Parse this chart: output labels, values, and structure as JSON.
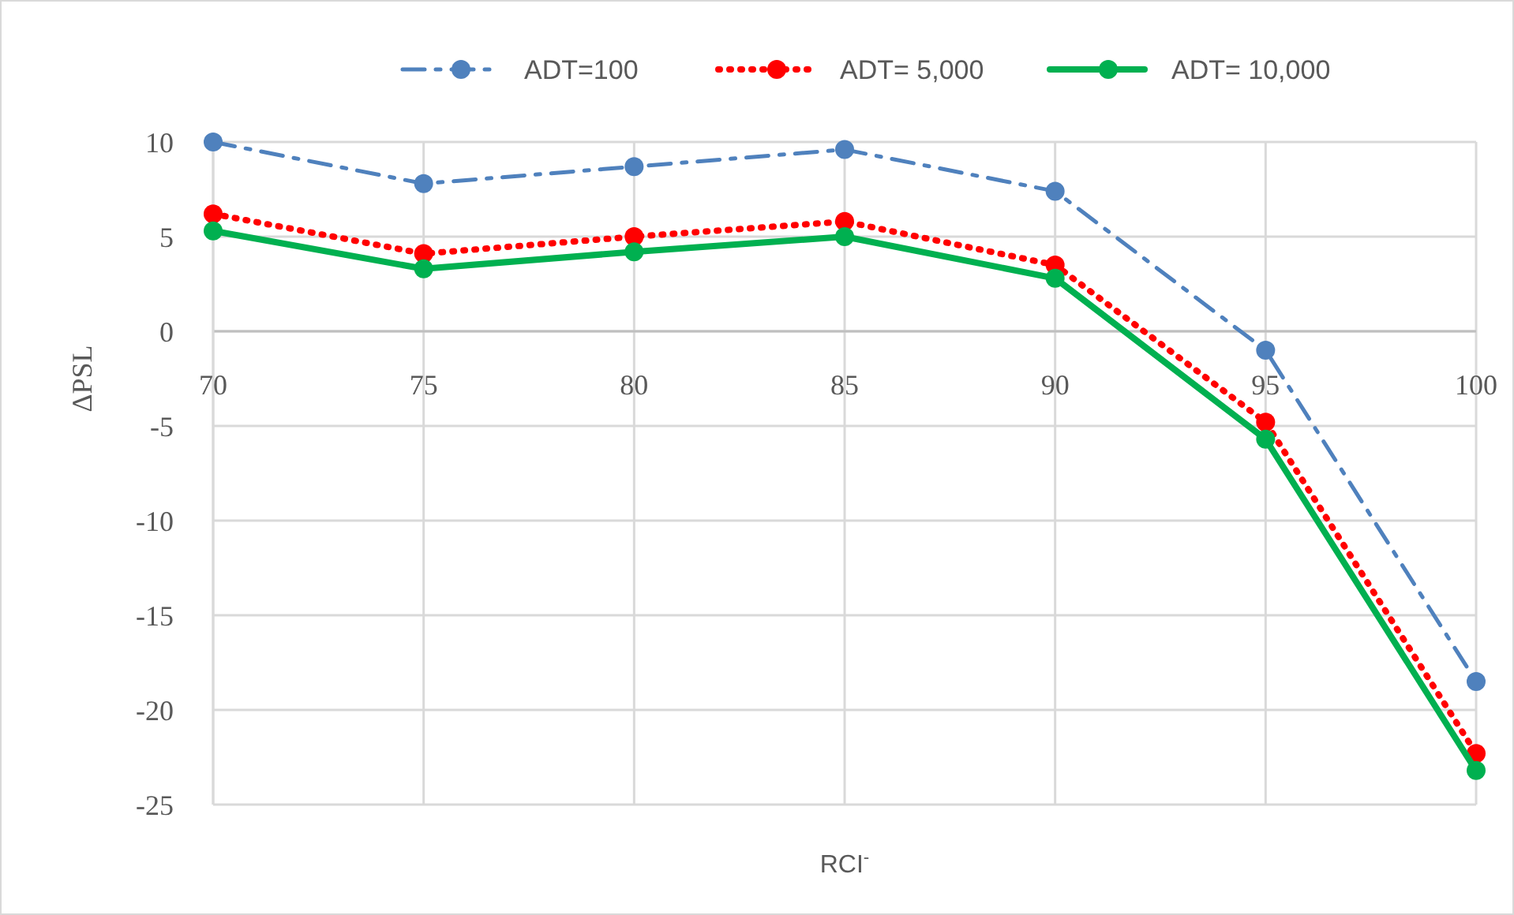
{
  "chart_data": {
    "type": "line",
    "xlabel": "RCI$^{-}$",
    "ylabel": "ΔPSL",
    "x": [
      70,
      75,
      80,
      85,
      90,
      95,
      100
    ],
    "xlim": [
      70,
      100
    ],
    "xticks": [
      70,
      75,
      80,
      85,
      90,
      95,
      100
    ],
    "ylim": [
      -25,
      10
    ],
    "yticks": [
      -25,
      -20,
      -15,
      -10,
      -5,
      0,
      5,
      10
    ],
    "grid": true,
    "legend": "top",
    "marker": "circle",
    "series": [
      {
        "name": "ADT=100",
        "color": "#4f81bd",
        "line_style": "dashed",
        "values": [
          10.0,
          7.8,
          8.7,
          9.6,
          7.4,
          -1.0,
          -18.5
        ]
      },
      {
        "name": "ADT= 5,000",
        "color": "#ff0000",
        "line_style": "dotted",
        "values": [
          6.2,
          4.1,
          5.0,
          5.8,
          3.5,
          -4.8,
          -22.3
        ]
      },
      {
        "name": "ADT= 10,000",
        "color": "#00b050",
        "line_style": "solid",
        "values": [
          5.3,
          3.3,
          4.2,
          5.0,
          2.8,
          -5.7,
          -23.2
        ]
      }
    ]
  }
}
